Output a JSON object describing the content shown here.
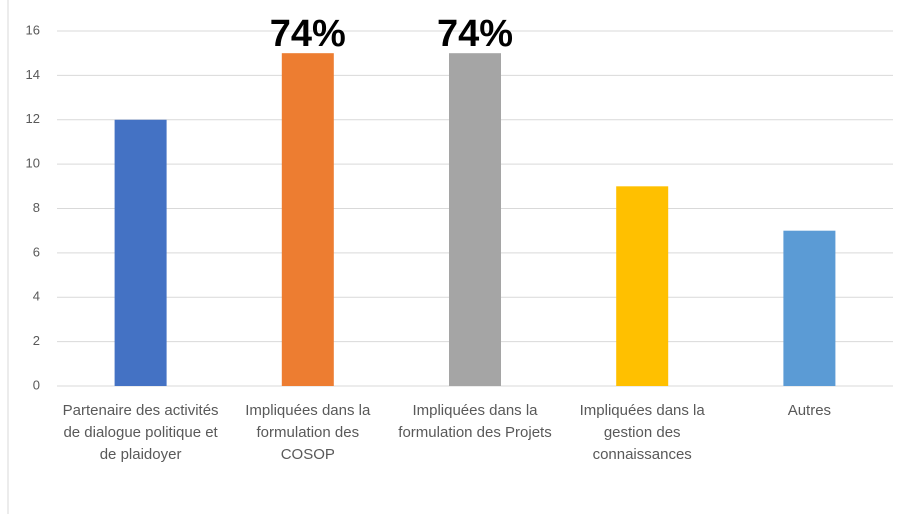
{
  "chart_data": {
    "type": "bar",
    "categories": [
      "Partenaire des activités de dialogue politique et de plaidoyer",
      "Impliquées dans la formulation des COSOP",
      "Impliquées dans la formulation des Projets",
      "Impliquées dans la gestion des connaissances",
      "Autres"
    ],
    "values": [
      12,
      15,
      15,
      9,
      7
    ],
    "colors": [
      "#4472c4",
      "#ed7d31",
      "#a5a5a5",
      "#ffc000",
      "#5b9bd5"
    ],
    "annotations": [
      {
        "text": "74%",
        "category": 1
      },
      {
        "text": "74%",
        "category": 2
      }
    ],
    "ylim": [
      0,
      16
    ],
    "yticks": [
      0,
      2,
      4,
      6,
      8,
      10,
      12,
      14,
      16
    ],
    "grid": true
  }
}
